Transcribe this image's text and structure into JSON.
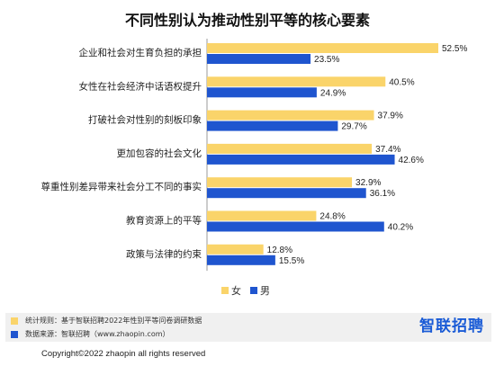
{
  "colors": {
    "female": "#fad46a",
    "male": "#1f55cf"
  },
  "chart_data": {
    "type": "bar",
    "orientation": "horizontal",
    "title": "不同性别认为推动性别平等的核心要素",
    "categories": [
      "企业和社会对生育负担的承担",
      "女性在社会经济中话语权提升",
      "打破社会对性别的刻板印象",
      "更加包容的社会文化",
      "尊重性别差异带来社会分工不同的事实",
      "教育资源上的平等",
      "政策与法律的约束"
    ],
    "series": [
      {
        "name": "女",
        "values": [
          52.5,
          40.5,
          37.9,
          37.4,
          32.9,
          24.8,
          12.8
        ],
        "labels": [
          "52.5%",
          "40.5%",
          "37.9%",
          "37.4%",
          "32.9%",
          "24.8%",
          "12.8%"
        ]
      },
      {
        "name": "男",
        "values": [
          23.5,
          24.9,
          29.7,
          42.6,
          36.1,
          40.2,
          15.5
        ],
        "labels": [
          "23.5%",
          "24.9%",
          "29.7%",
          "42.6%",
          "36.1%",
          "40.2%",
          "15.5%"
        ]
      }
    ],
    "unit": "%",
    "xlim": [
      0,
      55
    ],
    "legend": "bottom-center",
    "grid": false
  },
  "footer": {
    "note1": "统计规则：基于智联招聘2022年性别平等问卷调研数据",
    "note2": "数据来源：智联招聘（www.zhaopin.com）",
    "brand": "智联招聘",
    "copyright": "Copyright©2022 zhaopin all rights reserved"
  }
}
